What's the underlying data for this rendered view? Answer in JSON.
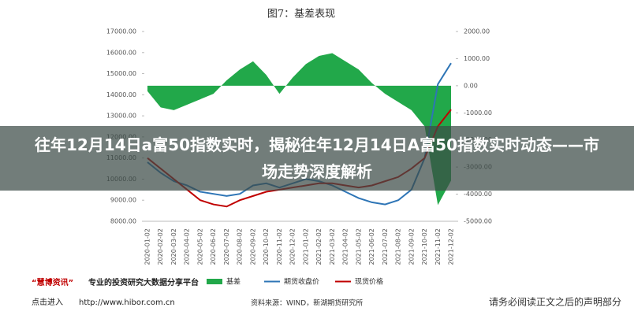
{
  "chart_data": {
    "type": "line",
    "title": "图7：基差表现",
    "x": [
      "2020-01-02",
      "2020-02-02",
      "2020-03-02",
      "2020-04-02",
      "2020-05-02",
      "2020-06-02",
      "2020-07-02",
      "2020-08-02",
      "2020-09-02",
      "2020-10-02",
      "2020-11-02",
      "2020-12-02",
      "2021-01-02",
      "2021-02-02",
      "2021-03-02",
      "2021-04-02",
      "2021-05-02",
      "2021-06-02",
      "2021-07-02",
      "2021-08-02",
      "2021-09-02",
      "2021-10-02",
      "2021-11-02",
      "2021-12-02"
    ],
    "series": [
      {
        "name": "基差",
        "color": "#22a84a",
        "axis": "y2",
        "values": [
          -200,
          -800,
          -900,
          -700,
          -500,
          -300,
          200,
          600,
          900,
          400,
          -300,
          300,
          800,
          1100,
          1200,
          900,
          600,
          100,
          -300,
          -600,
          -900,
          -1500,
          -4400,
          -3500
        ]
      },
      {
        "name": "期货收盘价",
        "color": "#2e75b6",
        "values": [
          10800,
          10300,
          9900,
          9700,
          9400,
          9300,
          9200,
          9300,
          9700,
          9800,
          9600,
          9800,
          10000,
          9900,
          9700,
          9400,
          9100,
          8900,
          8800,
          9000,
          9500,
          11000,
          14500,
          15500
        ]
      },
      {
        "name": "现货价格",
        "color": "#c00000",
        "values": [
          11000,
          10500,
          10000,
          9500,
          9000,
          8800,
          8700,
          9000,
          9200,
          9400,
          9500,
          9600,
          9700,
          9800,
          9800,
          9700,
          9600,
          9700,
          9900,
          10100,
          10500,
          11000,
          12500,
          13300
        ]
      }
    ],
    "ylim": [
      8000,
      17000
    ],
    "yticks": [
      {
        "value": 8000,
        "label": "8000.00"
      },
      {
        "value": 9000,
        "label": "9000.00"
      },
      {
        "value": 10000,
        "label": "10000.00"
      },
      {
        "value": 11000,
        "label": "11000.00"
      },
      {
        "value": 12000,
        "label": "12000.00"
      },
      {
        "value": 13000,
        "label": "13000.00"
      },
      {
        "value": 14000,
        "label": "14000.00"
      },
      {
        "value": 15000,
        "label": "15000.00"
      },
      {
        "value": 16000,
        "label": "16000.00"
      },
      {
        "value": 17000,
        "label": "17000.00"
      }
    ],
    "y2lim": [
      -5000,
      2000
    ],
    "y2ticks": [
      {
        "value": -5000,
        "label": "-5000.00"
      },
      {
        "value": -4000,
        "label": "-4000.00"
      },
      {
        "value": -3000,
        "label": "-3000.00"
      },
      {
        "value": -2000,
        "label": "-2000.00"
      },
      {
        "value": -1000,
        "label": "-1000.00"
      },
      {
        "value": 0,
        "label": "0.00"
      },
      {
        "value": 1000,
        "label": "1000.00"
      },
      {
        "value": 2000,
        "label": "2000.00"
      }
    ],
    "source": "资料来源：WIND，新湖期货研究所"
  },
  "banner_title": "往年12月14日a富50指数实时，揭秘往年12月14日A富50指数实时动态——市场走势深度解析",
  "footer": {
    "brand": "“慧博资讯”",
    "slogan": "专业的投资研究大数据分享平台",
    "link_label": "点击进入",
    "url": "http://www.hibor.com.cn",
    "disclaimer": "请务必阅读正文之后的声明部分"
  }
}
